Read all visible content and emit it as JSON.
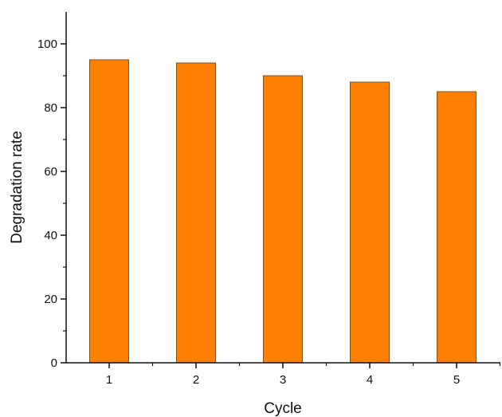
{
  "chart_data": {
    "type": "bar",
    "title": "",
    "xlabel": "Cycle",
    "ylabel": "Degradation rate",
    "categories": [
      "1",
      "2",
      "3",
      "4",
      "5"
    ],
    "values": [
      95,
      94,
      90,
      88,
      85
    ],
    "ylim": [
      0,
      110
    ],
    "yticks": [
      0,
      20,
      40,
      60,
      80,
      100
    ],
    "yticklabels": [
      "0",
      "20",
      "40",
      "60",
      "80",
      "100"
    ],
    "grid": false,
    "legend": "none"
  },
  "colors": {
    "bar_fill": "#ff8000",
    "bar_stroke": "#8a4b12",
    "axis": "#111111"
  }
}
